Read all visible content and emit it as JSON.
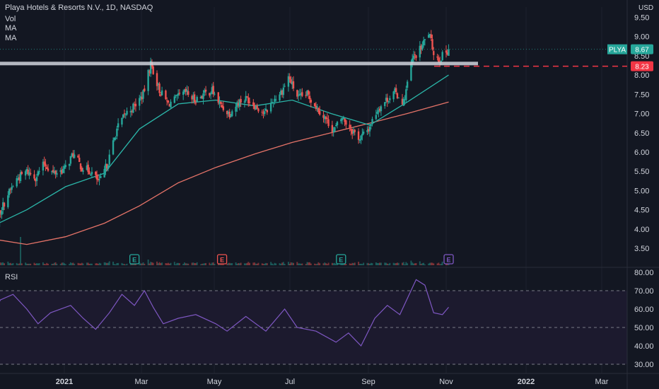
{
  "legend": {
    "symbol_line": "Playa Hotels & Resorts N.V., 1D, NASDAQ",
    "vol": "Vol",
    "ma1": "MA",
    "ma2": "MA"
  },
  "currency": "USD",
  "price_tag": {
    "symbol": "PLYA",
    "value": "8.67"
  },
  "alert_tag": {
    "value": "8.23"
  },
  "rsi_label": "RSI",
  "earnings_marker": "E",
  "colors": {
    "background": "#131722",
    "up": "#26a69a",
    "down": "#ef5350",
    "ma_fast": "#2bb5a8",
    "ma_slow": "#e57368",
    "rsi": "#7e57c2",
    "rsi_band": "#1c1a2e",
    "resistance": "#d1d4dc",
    "alert": "#f23645"
  },
  "chart_data": [
    {
      "type": "candlestick",
      "title": "Playa Hotels & Resorts N.V., 1D, NASDAQ",
      "x_ticks": [
        "2021",
        "Mar",
        "May",
        "Jul",
        "Sep",
        "Nov",
        "2022",
        "Mar"
      ],
      "y_ticks": [
        "3.50",
        "4.00",
        "4.50",
        "5.00",
        "5.50",
        "6.00",
        "6.50",
        "7.00",
        "7.50",
        "8.00",
        "8.50",
        "9.00",
        "9.50"
      ],
      "ylim": [
        3.2,
        9.7
      ],
      "close_path": [
        [
          "2020-11-02",
          3.9
        ],
        [
          "2020-11-09",
          4.4
        ],
        [
          "2020-11-16",
          4.9
        ],
        [
          "2020-11-23",
          5.3
        ],
        [
          "2020-12-01",
          5.5
        ],
        [
          "2020-12-08",
          5.35
        ],
        [
          "2020-12-15",
          5.7
        ],
        [
          "2020-12-22",
          5.45
        ],
        [
          "2020-12-31",
          5.55
        ],
        [
          "2021-01-07",
          5.95
        ],
        [
          "2021-01-14",
          5.6
        ],
        [
          "2021-01-21",
          5.5
        ],
        [
          "2021-01-28",
          5.2
        ],
        [
          "2021-02-04",
          5.75
        ],
        [
          "2021-02-11",
          6.6
        ],
        [
          "2021-02-18",
          7.0
        ],
        [
          "2021-02-25",
          7.2
        ],
        [
          "2021-03-04",
          7.5
        ],
        [
          "2021-03-10",
          8.3
        ],
        [
          "2021-03-17",
          7.6
        ],
        [
          "2021-03-24",
          7.25
        ],
        [
          "2021-03-31",
          7.4
        ],
        [
          "2021-04-07",
          7.55
        ],
        [
          "2021-04-14",
          7.35
        ],
        [
          "2021-04-21",
          7.5
        ],
        [
          "2021-04-28",
          7.6
        ],
        [
          "2021-05-05",
          7.2
        ],
        [
          "2021-05-12",
          7.0
        ],
        [
          "2021-05-19",
          7.3
        ],
        [
          "2021-05-26",
          7.4
        ],
        [
          "2021-06-02",
          7.2
        ],
        [
          "2021-06-09",
          7.0
        ],
        [
          "2021-06-16",
          7.35
        ],
        [
          "2021-06-23",
          7.6
        ],
        [
          "2021-06-28",
          7.95
        ],
        [
          "2021-07-06",
          7.4
        ],
        [
          "2021-07-13",
          7.5
        ],
        [
          "2021-07-20",
          7.2
        ],
        [
          "2021-07-27",
          6.9
        ],
        [
          "2021-08-03",
          6.55
        ],
        [
          "2021-08-10",
          6.9
        ],
        [
          "2021-08-17",
          6.6
        ],
        [
          "2021-08-24",
          6.35
        ],
        [
          "2021-08-31",
          6.6
        ],
        [
          "2021-09-07",
          7.1
        ],
        [
          "2021-09-14",
          7.35
        ],
        [
          "2021-09-21",
          7.55
        ],
        [
          "2021-09-28",
          7.3
        ],
        [
          "2021-10-05",
          8.4
        ],
        [
          "2021-10-12",
          8.7
        ],
        [
          "2021-10-18",
          9.1
        ],
        [
          "2021-10-22",
          8.6
        ],
        [
          "2021-10-26",
          8.4
        ],
        [
          "2021-10-29",
          8.5
        ],
        [
          "2021-11-03",
          8.67
        ]
      ],
      "resistance_level": 8.3,
      "alert_level": 8.23,
      "last_price": 8.67,
      "ma_fast": [
        [
          "2020-11-02",
          4.05
        ],
        [
          "2020-12-01",
          4.5
        ],
        [
          "2021-01-01",
          5.1
        ],
        [
          "2021-02-01",
          5.45
        ],
        [
          "2021-03-01",
          6.6
        ],
        [
          "2021-04-01",
          7.25
        ],
        [
          "2021-05-01",
          7.35
        ],
        [
          "2021-06-01",
          7.2
        ],
        [
          "2021-07-01",
          7.35
        ],
        [
          "2021-08-01",
          7.0
        ],
        [
          "2021-09-01",
          6.7
        ],
        [
          "2021-10-01",
          7.3
        ],
        [
          "2021-11-03",
          8.0
        ]
      ],
      "ma_slow": [
        [
          "2020-11-02",
          3.75
        ],
        [
          "2020-12-01",
          3.6
        ],
        [
          "2021-01-01",
          3.8
        ],
        [
          "2021-02-01",
          4.15
        ],
        [
          "2021-03-01",
          4.6
        ],
        [
          "2021-04-01",
          5.2
        ],
        [
          "2021-05-01",
          5.6
        ],
        [
          "2021-06-01",
          5.95
        ],
        [
          "2021-07-01",
          6.25
        ],
        [
          "2021-08-01",
          6.5
        ],
        [
          "2021-09-01",
          6.75
        ],
        [
          "2021-10-01",
          7.0
        ],
        [
          "2021-11-03",
          7.3
        ]
      ],
      "earnings_dates": [
        "2021-02-25",
        "2021-05-06",
        "2021-08-09",
        "2021-11-03"
      ]
    },
    {
      "type": "line",
      "title": "RSI",
      "y_ticks": [
        "30.00",
        "40.00",
        "50.00",
        "60.00",
        "70.00",
        "80.00"
      ],
      "ylim": [
        27,
        82
      ],
      "band": [
        30,
        70
      ],
      "mid": 50,
      "series": [
        [
          "2020-11-02",
          55
        ],
        [
          "2020-11-10",
          65
        ],
        [
          "2020-11-20",
          68
        ],
        [
          "2020-12-01",
          60
        ],
        [
          "2020-12-10",
          52
        ],
        [
          "2020-12-20",
          58
        ],
        [
          "2021-01-05",
          62
        ],
        [
          "2021-01-15",
          55
        ],
        [
          "2021-01-25",
          49
        ],
        [
          "2021-02-05",
          58
        ],
        [
          "2021-02-15",
          68
        ],
        [
          "2021-02-25",
          62
        ],
        [
          "2021-03-05",
          70
        ],
        [
          "2021-03-12",
          61
        ],
        [
          "2021-03-20",
          52
        ],
        [
          "2021-04-01",
          55
        ],
        [
          "2021-04-15",
          57
        ],
        [
          "2021-05-01",
          52
        ],
        [
          "2021-05-10",
          48
        ],
        [
          "2021-05-25",
          56
        ],
        [
          "2021-06-10",
          48
        ],
        [
          "2021-06-25",
          60
        ],
        [
          "2021-07-05",
          50
        ],
        [
          "2021-07-20",
          48
        ],
        [
          "2021-08-05",
          42
        ],
        [
          "2021-08-15",
          47
        ],
        [
          "2021-08-25",
          40
        ],
        [
          "2021-09-05",
          55
        ],
        [
          "2021-09-15",
          62
        ],
        [
          "2021-09-25",
          57
        ],
        [
          "2021-10-08",
          76
        ],
        [
          "2021-10-15",
          73
        ],
        [
          "2021-10-22",
          58
        ],
        [
          "2021-10-29",
          57
        ],
        [
          "2021-11-03",
          61
        ]
      ]
    }
  ]
}
